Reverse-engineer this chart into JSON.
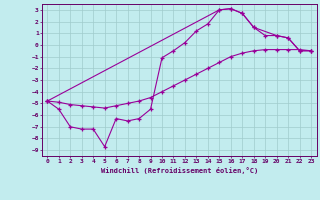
{
  "xlabel": "Windchill (Refroidissement éolien,°C)",
  "bg_color": "#c2ecee",
  "grid_color": "#a0cccc",
  "line_color": "#990099",
  "xlim": [
    -0.5,
    23.5
  ],
  "ylim": [
    -9.5,
    3.5
  ],
  "xticks": [
    0,
    1,
    2,
    3,
    4,
    5,
    6,
    7,
    8,
    9,
    10,
    11,
    12,
    13,
    14,
    15,
    16,
    17,
    18,
    19,
    20,
    21,
    22,
    23
  ],
  "yticks": [
    3,
    2,
    1,
    0,
    -1,
    -2,
    -3,
    -4,
    -5,
    -6,
    -7,
    -8,
    -9
  ],
  "zigzag_x": [
    0,
    1,
    2,
    3,
    4,
    5,
    6,
    7,
    8,
    9,
    10,
    11,
    12,
    13,
    14,
    15,
    16,
    17,
    18,
    19,
    20,
    21,
    22,
    23
  ],
  "zigzag_y": [
    -4.8,
    -5.5,
    -7.0,
    -7.2,
    -7.2,
    -8.7,
    -6.3,
    -6.5,
    -6.3,
    -5.5,
    -1.1,
    -0.5,
    0.2,
    1.2,
    1.8,
    3.0,
    3.1,
    2.7,
    1.5,
    0.8,
    0.8,
    0.6,
    -0.5,
    -0.5
  ],
  "upper_x": [
    0,
    15,
    16,
    17,
    18,
    20,
    21,
    22,
    23
  ],
  "upper_y": [
    -4.8,
    3.0,
    3.1,
    2.7,
    1.5,
    0.8,
    0.6,
    -0.5,
    -0.5
  ],
  "lower_x": [
    0,
    1,
    2,
    3,
    4,
    5,
    6,
    7,
    8,
    9,
    10,
    11,
    12,
    13,
    14,
    15,
    16,
    17,
    18,
    19,
    20,
    21,
    22,
    23
  ],
  "lower_y": [
    -4.8,
    -4.9,
    -5.1,
    -5.2,
    -5.3,
    -5.4,
    -5.2,
    -5.0,
    -4.8,
    -4.5,
    -4.0,
    -3.5,
    -3.0,
    -2.5,
    -2.0,
    -1.5,
    -1.0,
    -0.7,
    -0.5,
    -0.4,
    -0.4,
    -0.4,
    -0.4,
    -0.5
  ]
}
